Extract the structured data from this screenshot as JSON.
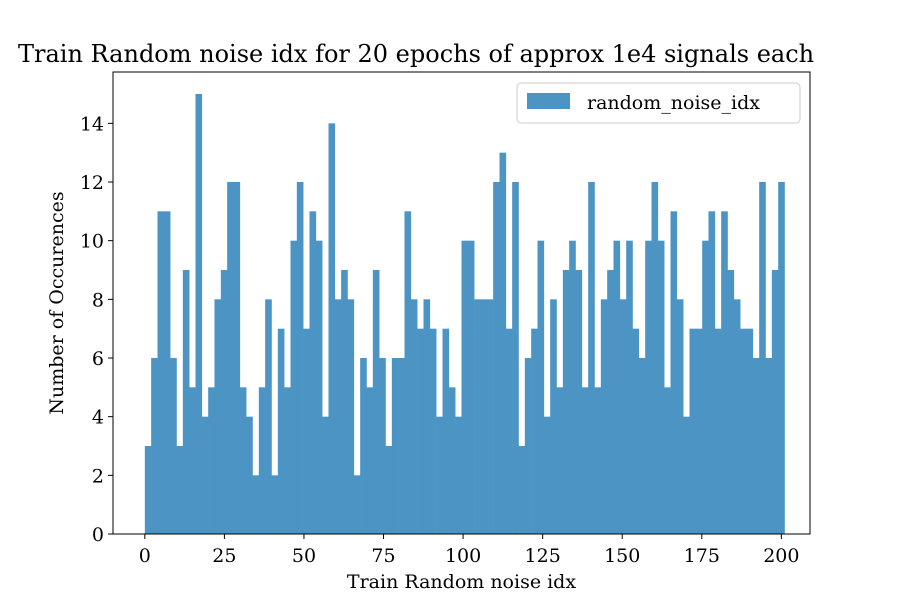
{
  "chart_data": {
    "type": "bar",
    "title": "Train Random noise idx for 20 epochs of approx 1e4 signals each",
    "xlabel": "Train Random noise idx",
    "ylabel": "Number of Occurences",
    "xlim": [
      -10,
      209
    ],
    "ylim": [
      0,
      15.75
    ],
    "xticks": [
      0,
      25,
      50,
      75,
      100,
      125,
      150,
      175,
      200
    ],
    "yticks": [
      0,
      2,
      4,
      6,
      8,
      10,
      12,
      14
    ],
    "bin_start": 0,
    "bin_width": 1.99,
    "bar_color": "#4c94c4",
    "legend_position": "top-right",
    "grid": false,
    "series": [
      {
        "name": "random_noise_idx",
        "values": [
          3,
          6,
          11,
          11,
          6,
          3,
          9,
          5,
          15,
          4,
          5,
          8,
          9,
          12,
          12,
          5,
          4,
          2,
          5,
          8,
          2,
          7,
          5,
          10,
          12,
          7,
          11,
          10,
          4,
          14,
          8,
          9,
          8,
          2,
          6,
          5,
          9,
          6,
          3,
          6,
          6,
          11,
          8,
          7,
          8,
          7,
          4,
          7,
          5,
          4,
          10,
          10,
          8,
          8,
          8,
          12,
          13,
          7,
          12,
          3,
          6,
          7,
          10,
          4,
          8,
          5,
          9,
          10,
          9,
          5,
          12,
          5,
          8,
          9,
          10,
          8,
          10,
          7,
          6,
          10,
          12,
          10,
          5,
          11,
          8,
          4,
          7,
          7,
          10,
          11,
          7,
          11,
          9,
          8,
          7,
          7,
          6,
          12,
          6,
          9,
          12
        ]
      }
    ]
  }
}
